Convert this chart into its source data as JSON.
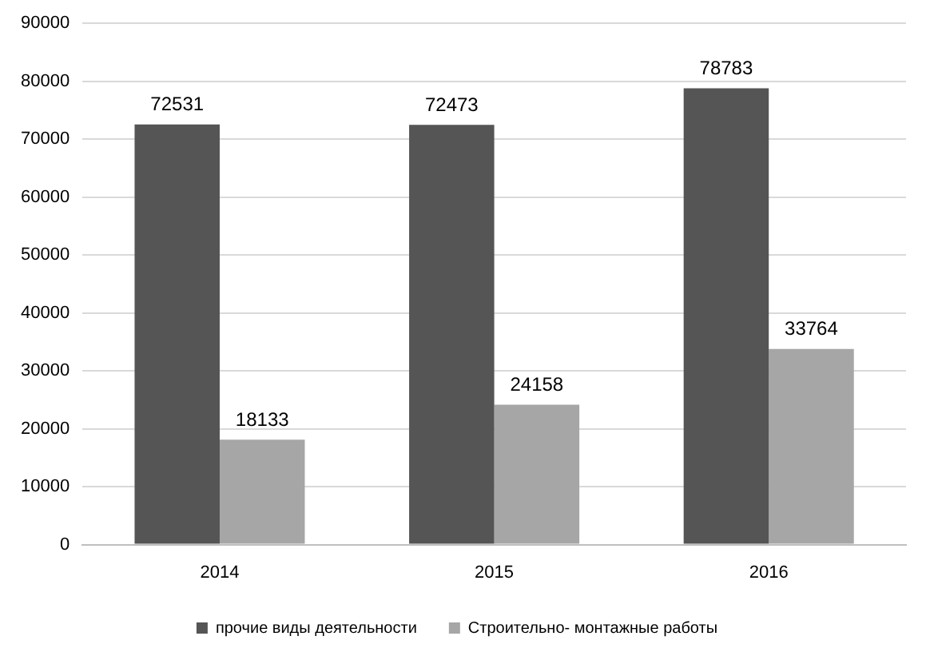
{
  "chart_data": {
    "type": "bar",
    "categories": [
      "2014",
      "2015",
      "2016"
    ],
    "series": [
      {
        "name": "прочие виды деятельности",
        "color": "#555555",
        "values": [
          72531,
          72473,
          78783
        ]
      },
      {
        "name": "Строительно- монтажные работы",
        "color": "#a6a6a6",
        "values": [
          18133,
          24158,
          33764
        ]
      }
    ],
    "ylim": [
      0,
      90000
    ],
    "yticks": [
      0,
      10000,
      20000,
      30000,
      40000,
      50000,
      60000,
      70000,
      80000,
      90000
    ],
    "grid": "y",
    "legend": "bottom",
    "data_labels": true
  }
}
